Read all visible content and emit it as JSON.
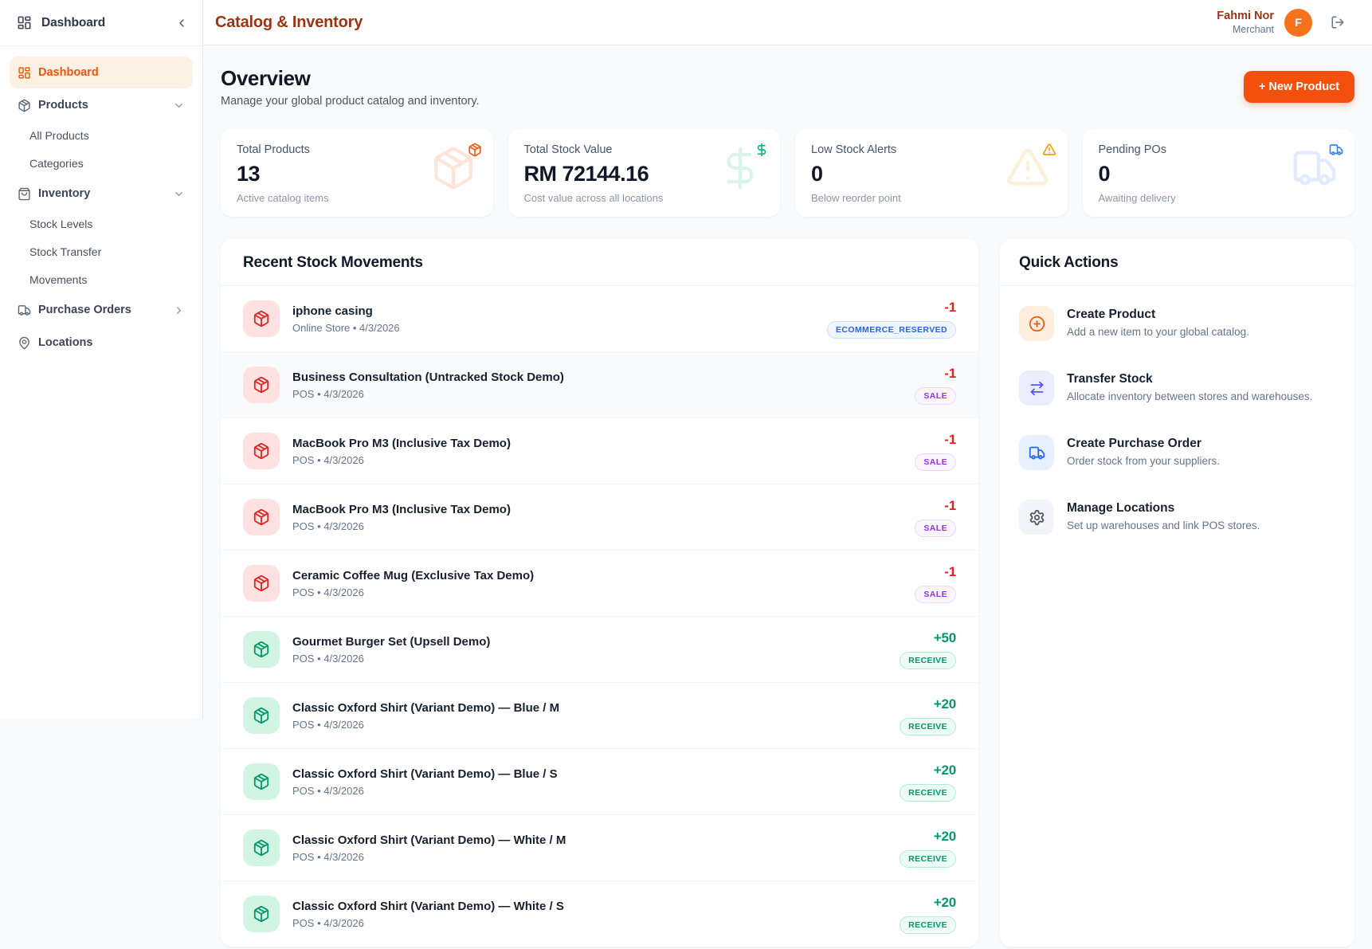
{
  "colors": {
    "brand_orange": "#f2500c",
    "title_maroon": "#9a3412",
    "negative_red": "#dc2626",
    "positive_green": "#059669",
    "reserved_blue": "#2563eb",
    "sale_purple": "#9333ea",
    "warning_amber": "#f59e0b",
    "po_blue": "#3b82f6",
    "transfer_indigo": "#5457ee",
    "page_background": "#f8fafc"
  },
  "sidebar": {
    "header": {
      "title": "Dashboard",
      "icon": "layout-dashboard-icon",
      "collapse_icon": "chevron-left-icon"
    },
    "items": [
      {
        "label": "Dashboard",
        "icon": "layout-dashboard-icon",
        "active": true
      },
      {
        "label": "Products",
        "icon": "package-icon",
        "chevron": "down"
      },
      {
        "label": "All Products",
        "sub": true
      },
      {
        "label": "Categories",
        "sub": true
      },
      {
        "label": "Inventory",
        "icon": "shopping-bag-icon",
        "chevron": "down"
      },
      {
        "label": "Stock Levels",
        "sub": true
      },
      {
        "label": "Stock Transfer",
        "sub": true
      },
      {
        "label": "Movements",
        "sub": true
      },
      {
        "label": "Purchase Orders",
        "icon": "truck-icon",
        "chevron": "right"
      },
      {
        "label": "Locations",
        "icon": "map-pin-icon"
      }
    ]
  },
  "topbar": {
    "title": "Catalog & Inventory",
    "user": {
      "name": "Fahmi Nor",
      "role": "Merchant",
      "avatar_initial": "F"
    },
    "logout_icon": "log-out-icon"
  },
  "overview": {
    "title": "Overview",
    "subtitle": "Manage your global product catalog and inventory.",
    "new_product_label": "+ New Product"
  },
  "stats": [
    {
      "label": "Total Products",
      "value": "13",
      "sub": "Active catalog items",
      "icon": "package-icon",
      "color": "#f4570e"
    },
    {
      "label": "Total Stock Value",
      "value": "RM 72144.16",
      "sub": "Cost value across all locations",
      "icon": "dollar-sign-icon",
      "color": "#10b981"
    },
    {
      "label": "Low Stock Alerts",
      "value": "0",
      "sub": "Below reorder point",
      "icon": "alert-triangle-icon",
      "color": "#f59e0b"
    },
    {
      "label": "Pending POs",
      "value": "0",
      "sub": "Awaiting delivery",
      "icon": "truck-icon",
      "color": "#3b82f6"
    }
  ],
  "movements": {
    "title": "Recent Stock Movements",
    "items": [
      {
        "name": "iphone casing",
        "meta": "Online Store • 4/3/2026",
        "qty": "-1",
        "direction": "out",
        "badge": "ECOMMERCE_RESERVED",
        "badge_style": "blue",
        "highlighted": false
      },
      {
        "name": "Business Consultation (Untracked Stock Demo)",
        "meta": "POS • 4/3/2026",
        "qty": "-1",
        "direction": "out",
        "badge": "SALE",
        "badge_style": "purple",
        "highlighted": true
      },
      {
        "name": "MacBook Pro M3 (Inclusive Tax Demo)",
        "meta": "POS • 4/3/2026",
        "qty": "-1",
        "direction": "out",
        "badge": "SALE",
        "badge_style": "purple",
        "highlighted": false
      },
      {
        "name": "MacBook Pro M3 (Inclusive Tax Demo)",
        "meta": "POS • 4/3/2026",
        "qty": "-1",
        "direction": "out",
        "badge": "SALE",
        "badge_style": "purple",
        "highlighted": false
      },
      {
        "name": "Ceramic Coffee Mug (Exclusive Tax Demo)",
        "meta": "POS • 4/3/2026",
        "qty": "-1",
        "direction": "out",
        "badge": "SALE",
        "badge_style": "purple",
        "highlighted": false
      },
      {
        "name": "Gourmet Burger Set (Upsell Demo)",
        "meta": "POS • 4/3/2026",
        "qty": "+50",
        "direction": "in",
        "badge": "RECEIVE",
        "badge_style": "green",
        "highlighted": false
      },
      {
        "name": "Classic Oxford Shirt (Variant Demo) — Blue / M",
        "meta": "POS • 4/3/2026",
        "qty": "+20",
        "direction": "in",
        "badge": "RECEIVE",
        "badge_style": "green",
        "highlighted": false
      },
      {
        "name": "Classic Oxford Shirt (Variant Demo) — Blue / S",
        "meta": "POS • 4/3/2026",
        "qty": "+20",
        "direction": "in",
        "badge": "RECEIVE",
        "badge_style": "green",
        "highlighted": false
      },
      {
        "name": "Classic Oxford Shirt (Variant Demo) — White / M",
        "meta": "POS • 4/3/2026",
        "qty": "+20",
        "direction": "in",
        "badge": "RECEIVE",
        "badge_style": "green",
        "highlighted": false
      },
      {
        "name": "Classic Oxford Shirt (Variant Demo) — White / S",
        "meta": "POS • 4/3/2026",
        "qty": "+20",
        "direction": "in",
        "badge": "RECEIVE",
        "badge_style": "green",
        "highlighted": false
      }
    ]
  },
  "quick_actions": {
    "title": "Quick Actions",
    "items": [
      {
        "title": "Create Product",
        "desc": "Add a new item to your global catalog.",
        "icon": "circle-plus-icon",
        "style": "orange"
      },
      {
        "title": "Transfer Stock",
        "desc": "Allocate inventory between stores and warehouses.",
        "icon": "arrow-right-left-icon",
        "style": "indigo"
      },
      {
        "title": "Create Purchase Order",
        "desc": "Order stock from your suppliers.",
        "icon": "truck-icon",
        "style": "blue"
      },
      {
        "title": "Manage Locations",
        "desc": "Set up warehouses and link POS stores.",
        "icon": "settings-icon",
        "style": "gray"
      }
    ]
  }
}
